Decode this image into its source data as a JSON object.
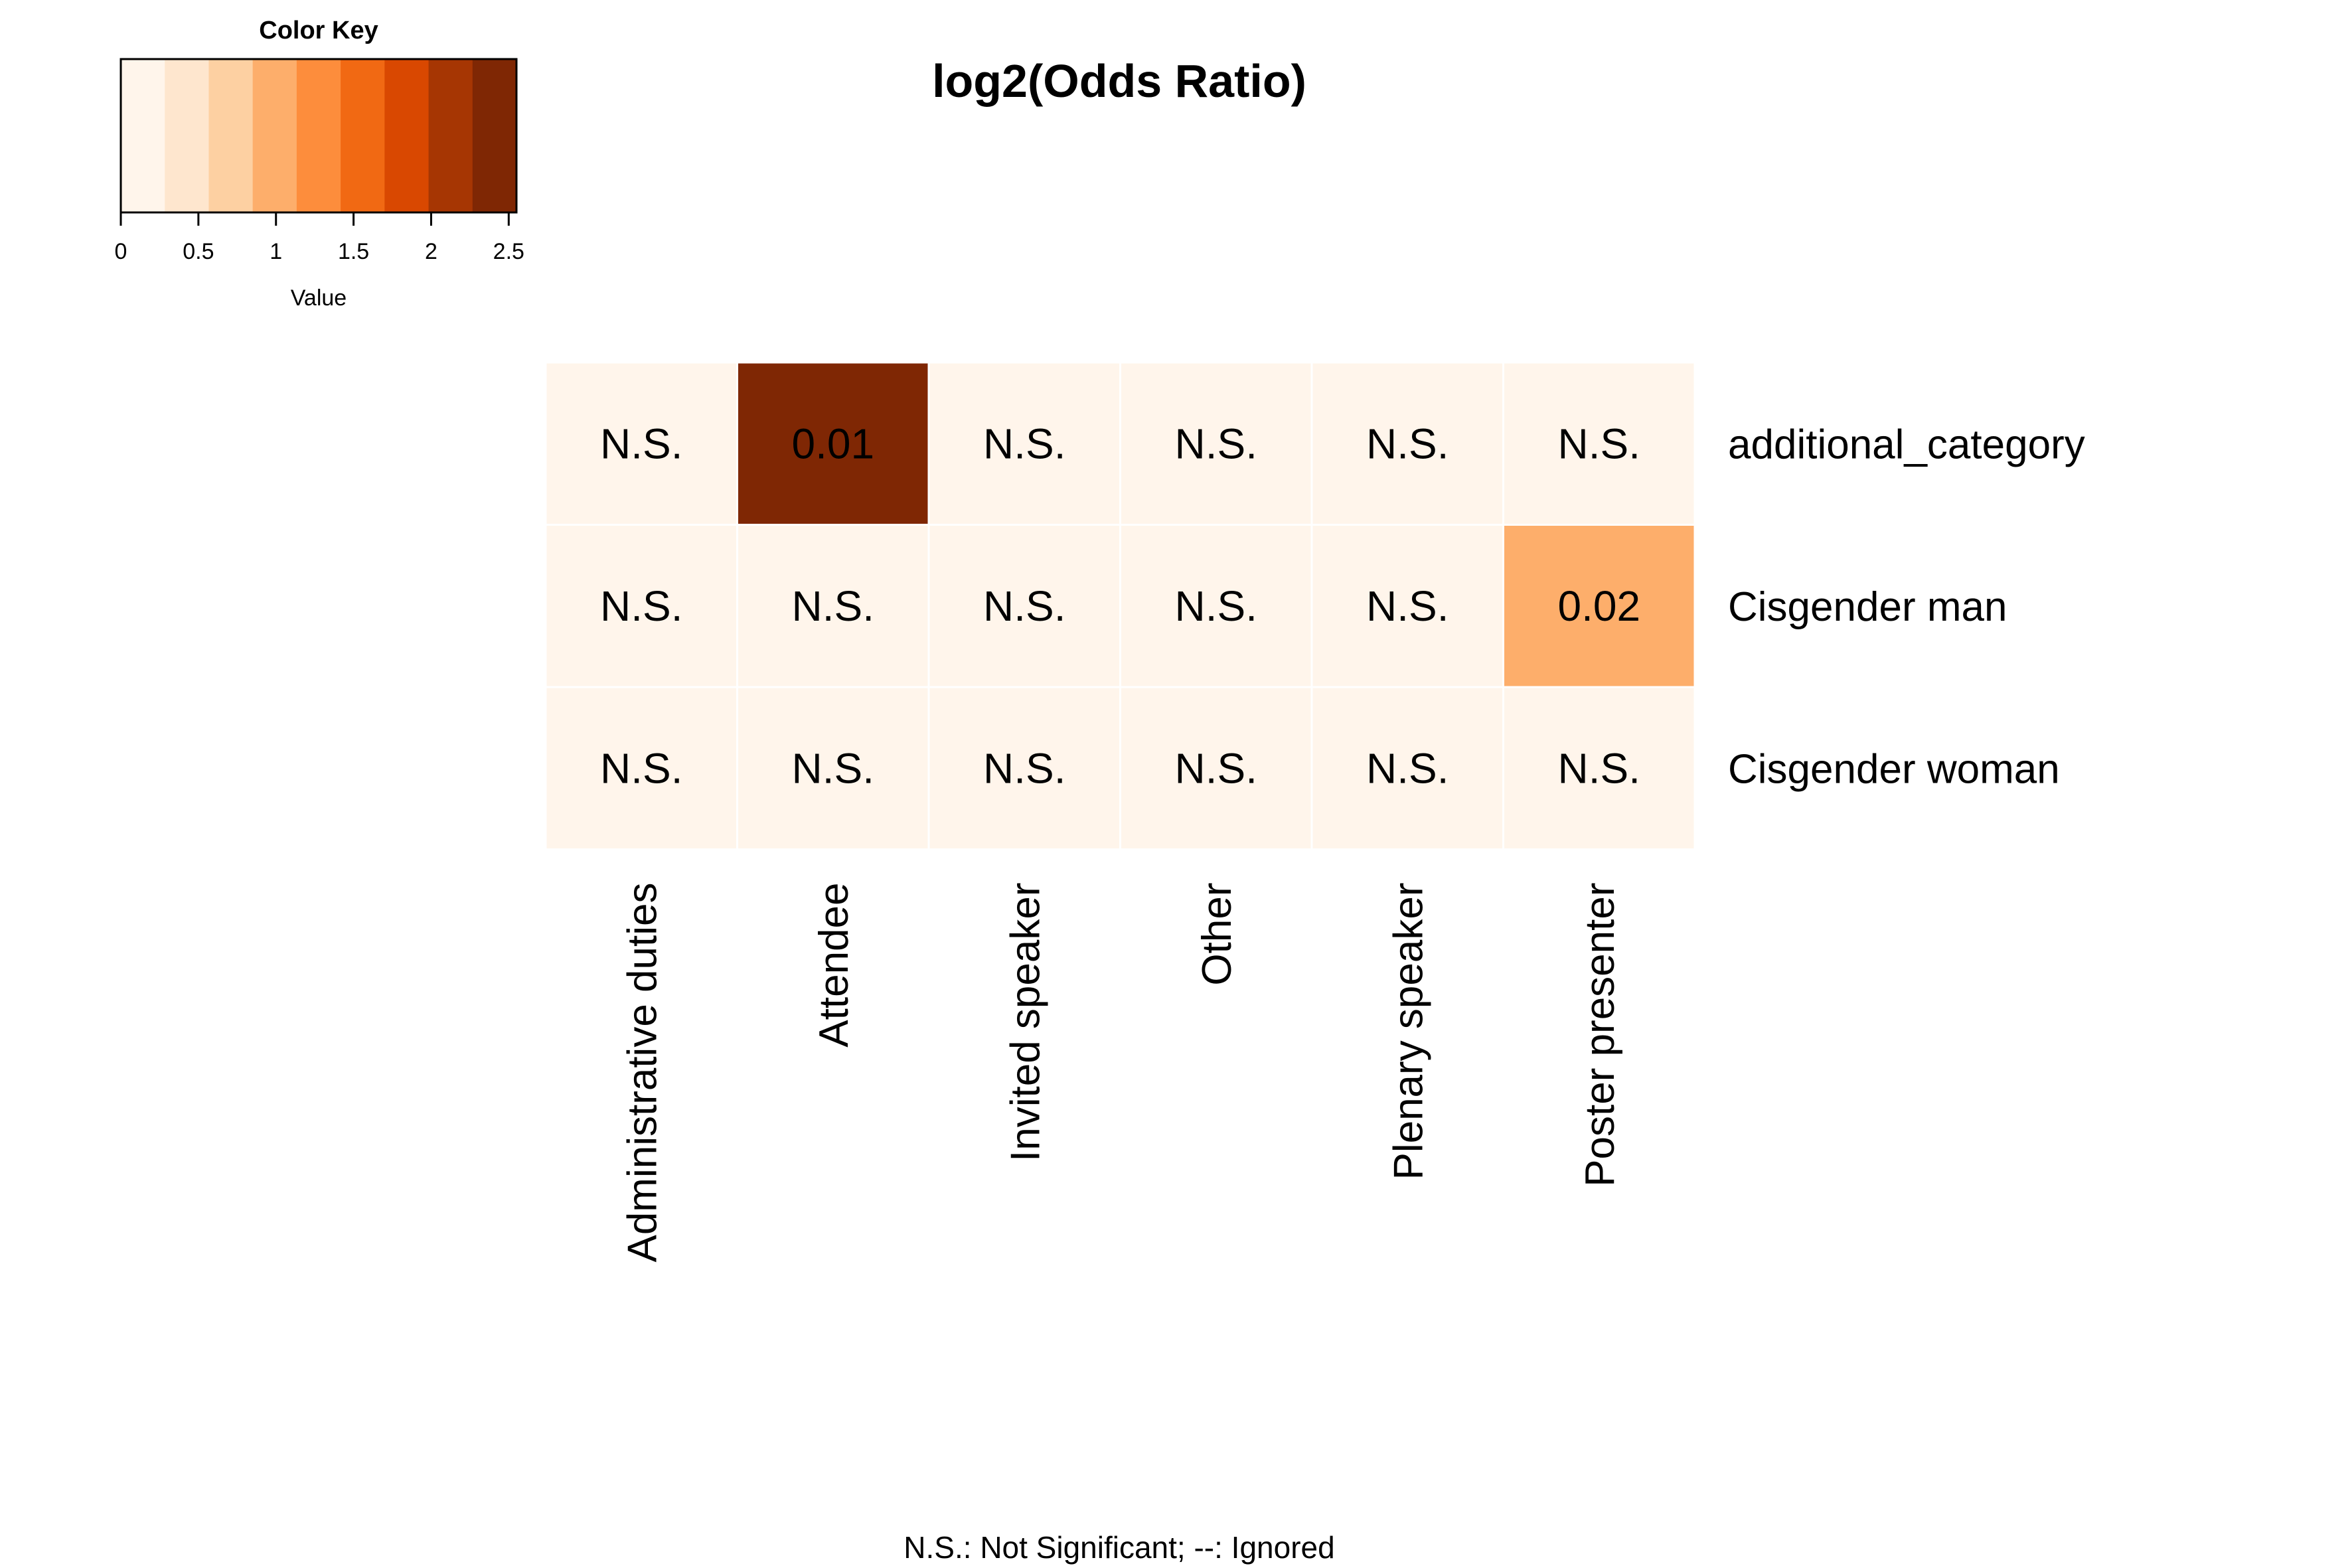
{
  "chart_data": {
    "type": "heatmap",
    "title": "log2(Odds Ratio)",
    "rows": [
      "additional_category",
      "Cisgender man",
      "Cisgender woman"
    ],
    "columns": [
      "Administrative duties",
      "Attendee",
      "Invited speaker",
      "Other",
      "Plenary speaker",
      "Poster presenter"
    ],
    "values": [
      [
        0,
        2.5,
        0,
        0,
        0,
        0
      ],
      [
        0,
        0,
        0,
        0,
        0,
        1.1
      ],
      [
        0,
        0,
        0,
        0,
        0,
        0
      ]
    ],
    "cell_labels": [
      [
        "N.S.",
        "0.01",
        "N.S.",
        "N.S.",
        "N.S.",
        "N.S."
      ],
      [
        "N.S.",
        "N.S.",
        "N.S.",
        "N.S.",
        "N.S.",
        "0.02"
      ],
      [
        "N.S.",
        "N.S.",
        "N.S.",
        "N.S.",
        "N.S.",
        "N.S."
      ]
    ],
    "color_key": {
      "title": "Color Key",
      "xlabel": "Value",
      "range": [
        0,
        2.55
      ],
      "ticks": [
        0,
        0.5,
        1,
        1.5,
        2,
        2.5
      ],
      "tick_labels": [
        "0",
        "0.5",
        "1",
        "1.5",
        "2",
        "2.5"
      ],
      "colors": [
        "#FFF5EB",
        "#FEE6CE",
        "#FDD0A2",
        "#FDAE6B",
        "#FD8D3C",
        "#F16913",
        "#D94801",
        "#A63603",
        "#7F2704"
      ]
    },
    "footnote": "N.S.: Not Significant; --: Ignored",
    "legend_position": "top-left"
  }
}
